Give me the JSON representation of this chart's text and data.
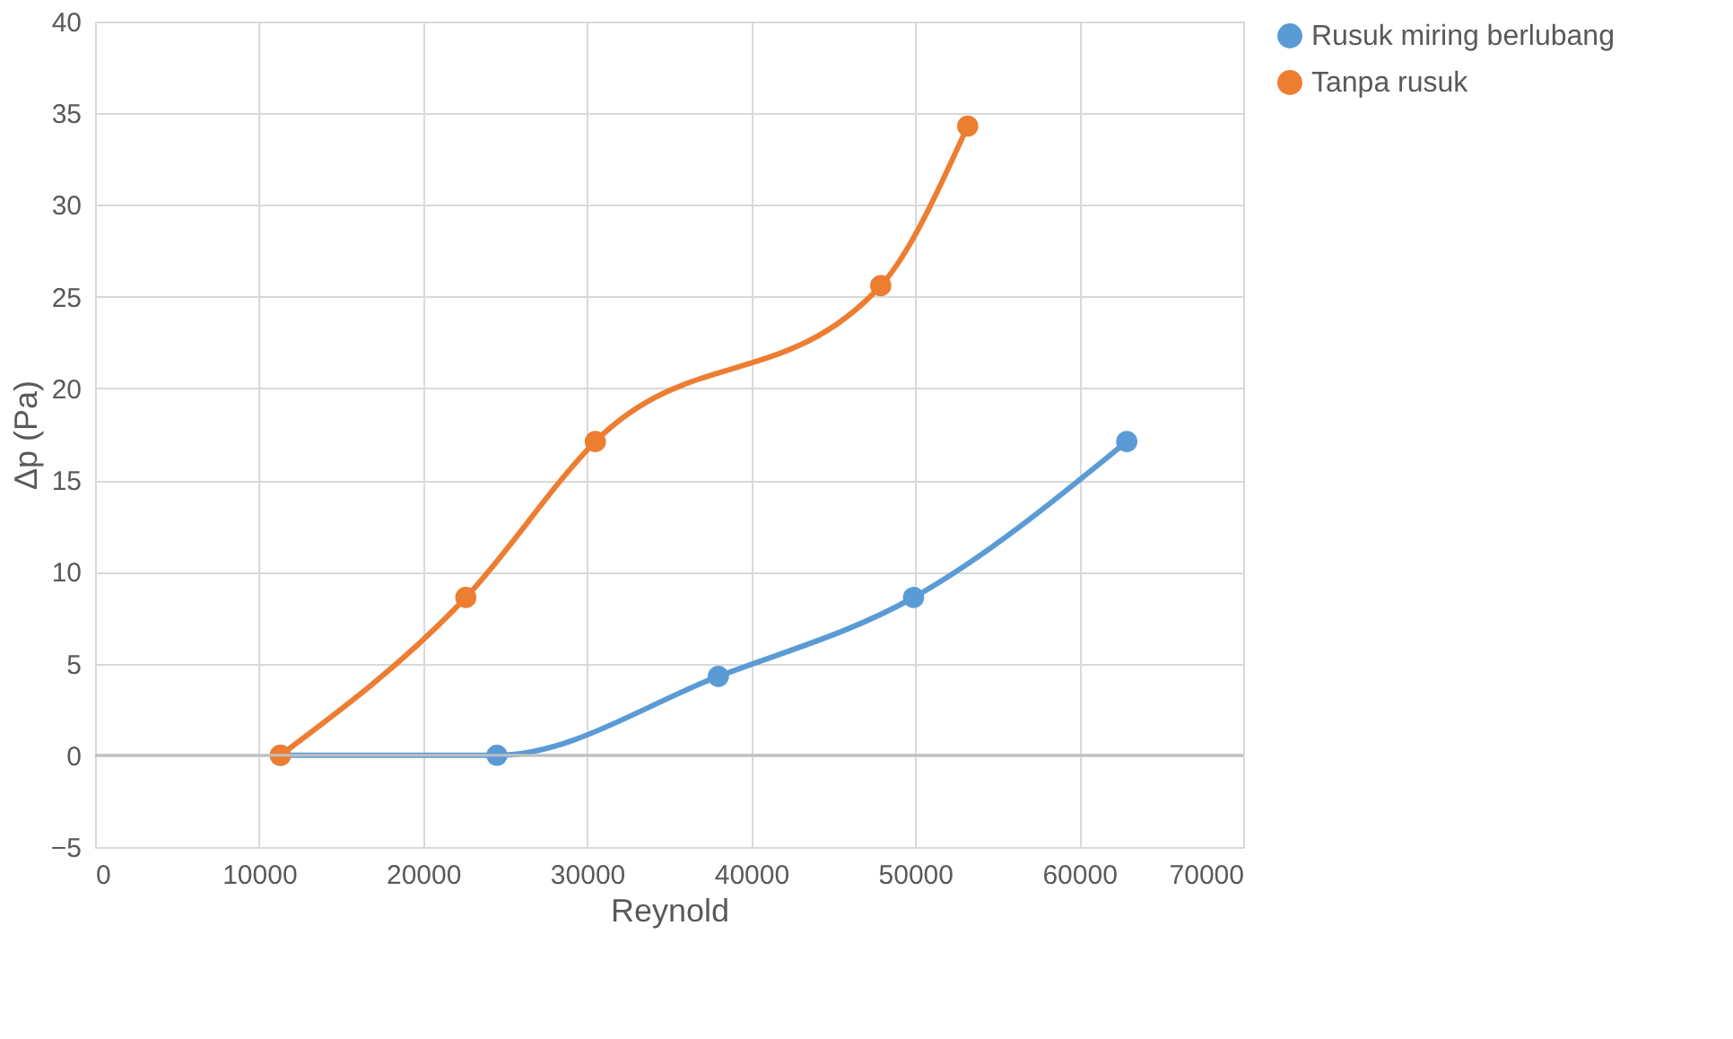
{
  "chart_data": {
    "type": "line",
    "xlabel": "Reynold",
    "ylabel": "Δp (Pa)",
    "xlim": [
      0,
      70000
    ],
    "xticks": [
      0,
      10000,
      20000,
      30000,
      40000,
      50000,
      60000,
      70000
    ],
    "ylim": [
      -5,
      40
    ],
    "yticks": [
      -5,
      0,
      5,
      10,
      15,
      20,
      25,
      30,
      35,
      40
    ],
    "grid": true,
    "legend": "right",
    "marker": "circle",
    "line_style": "solid",
    "series": [
      {
        "name": "Rusuk miring berlubang",
        "color": "#5b9bd5",
        "x": [
          11300,
          24500,
          38000,
          49900,
          62900
        ],
        "values": [
          0,
          0,
          4.3,
          8.6,
          17.1
        ]
      },
      {
        "name": "Tanpa rusuk",
        "color": "#ed7d31",
        "x": [
          11300,
          22600,
          30500,
          47900,
          53200
        ],
        "values": [
          0,
          8.6,
          17.1,
          25.6,
          34.3
        ]
      }
    ]
  }
}
